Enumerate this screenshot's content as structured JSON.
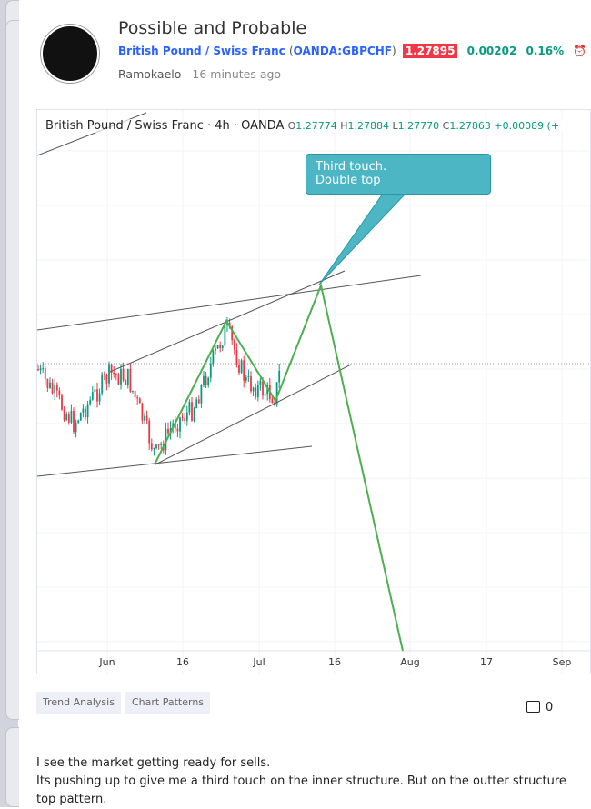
{
  "idea": {
    "title": "Possible and Probable",
    "symbol_name": "British Pound / Swiss Franc",
    "symbol_code": "OANDA:GBPCHF",
    "price": "1.27895",
    "change": "0.00202",
    "change_pct": "0.16%",
    "author": "Ramokaelo",
    "time": "16 minutes ago"
  },
  "chart": {
    "legend_title": "British Pound / Swiss Franc · 4h · OANDA",
    "o_label": "O",
    "o": "1.27774",
    "h_label": "H",
    "h": "1.27884",
    "l_label": "L",
    "l": "1.27770",
    "c_label": "C",
    "c": "1.27863",
    "change": "+0.00089 (+",
    "annotation_line1": "Third touch.",
    "annotation_line2": "Double top",
    "x_labels": [
      "Jun",
      "16",
      "Jul",
      "16",
      "Aug",
      "17",
      "Sep"
    ],
    "colors": {
      "up": "#089981",
      "down": "#f23645",
      "path": "#4caf50",
      "callout": "#4cb6c4"
    }
  },
  "tags": [
    "Trend Analysis",
    "Chart Patterns"
  ],
  "comments_count": "0",
  "description": [
    "I see the market getting ready for sells.",
    "Its pushing up to give me a third touch on the inner structure. But on the outter structure",
    "top pattern."
  ]
}
